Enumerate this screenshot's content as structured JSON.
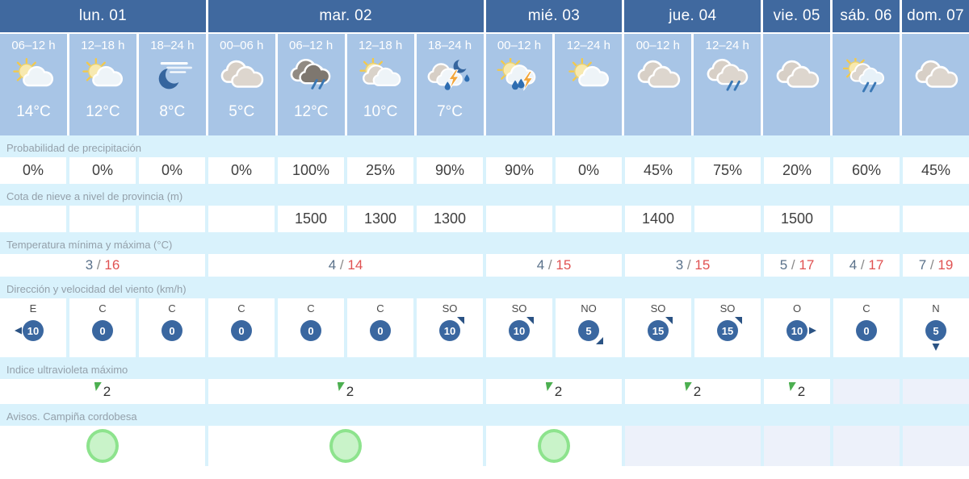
{
  "table": {
    "days": [
      {
        "label": "lun. 01",
        "span": 3
      },
      {
        "label": "mar. 02",
        "span": 4
      },
      {
        "label": "mié. 03",
        "span": 2
      },
      {
        "label": "jue. 04",
        "span": 2
      },
      {
        "label": "vie. 05",
        "span": 1
      },
      {
        "label": "sáb. 06",
        "span": 1
      },
      {
        "label": "dom. 07",
        "span": 1
      }
    ],
    "periods": [
      {
        "time": "06–12 h",
        "icon": "sun-cloud",
        "temp": "14°C"
      },
      {
        "time": "12–18 h",
        "icon": "sun-cloud",
        "temp": "12°C"
      },
      {
        "time": "18–24 h",
        "icon": "moon-wind",
        "temp": "8°C"
      },
      {
        "time": "00–06 h",
        "icon": "clouds",
        "temp": "5°C"
      },
      {
        "time": "06–12 h",
        "icon": "dark-clouds-rain",
        "temp": "12°C"
      },
      {
        "time": "12–18 h",
        "icon": "sun-behind-clouds",
        "temp": "10°C"
      },
      {
        "time": "18–24 h",
        "icon": "night-storm",
        "temp": "7°C"
      },
      {
        "time": "00–12 h",
        "icon": "sun-storm",
        "temp": ""
      },
      {
        "time": "12–24 h",
        "icon": "sun-cloud",
        "temp": ""
      },
      {
        "time": "00–12 h",
        "icon": "clouds",
        "temp": ""
      },
      {
        "time": "12–24 h",
        "icon": "clouds-rain",
        "temp": ""
      },
      {
        "time": "",
        "icon": "clouds",
        "temp": ""
      },
      {
        "time": "",
        "icon": "sun-cloud-rain",
        "temp": ""
      },
      {
        "time": "",
        "icon": "clouds",
        "temp": ""
      }
    ],
    "rows": {
      "precipitation": {
        "label": "Probabilidad de precipitación",
        "values": [
          "0%",
          "0%",
          "0%",
          "0%",
          "100%",
          "25%",
          "90%",
          "90%",
          "0%",
          "45%",
          "75%",
          "20%",
          "60%",
          "45%"
        ]
      },
      "snow_level": {
        "label": "Cota de nieve a nivel de provincia (m)",
        "values": [
          "",
          "",
          "",
          "",
          "1500",
          "1300",
          "1300",
          "",
          "",
          "1400",
          "",
          "1500",
          "",
          ""
        ]
      },
      "temperature": {
        "label": "Temperatura mínima y máxima (°C)",
        "values": [
          {
            "min": "3",
            "max": "16",
            "span": 3
          },
          {
            "min": "4",
            "max": "14",
            "span": 4
          },
          {
            "min": "4",
            "max": "15",
            "span": 2
          },
          {
            "min": "3",
            "max": "15",
            "span": 2
          },
          {
            "min": "5",
            "max": "17",
            "span": 1
          },
          {
            "min": "4",
            "max": "17",
            "span": 1
          },
          {
            "min": "7",
            "max": "19",
            "span": 1
          }
        ]
      },
      "wind": {
        "label": "Dirección y velocidad del viento (km/h)",
        "values": [
          {
            "dir": "E",
            "speed": "10",
            "arrow": "left"
          },
          {
            "dir": "C",
            "speed": "0",
            "arrow": null
          },
          {
            "dir": "C",
            "speed": "0",
            "arrow": null
          },
          {
            "dir": "C",
            "speed": "0",
            "arrow": null
          },
          {
            "dir": "C",
            "speed": "0",
            "arrow": null
          },
          {
            "dir": "C",
            "speed": "0",
            "arrow": null
          },
          {
            "dir": "SO",
            "speed": "10",
            "arrow": "top-right"
          },
          {
            "dir": "SO",
            "speed": "10",
            "arrow": "top-right"
          },
          {
            "dir": "NO",
            "speed": "5",
            "arrow": "bottom-right"
          },
          {
            "dir": "SO",
            "speed": "15",
            "arrow": "top-right"
          },
          {
            "dir": "SO",
            "speed": "15",
            "arrow": "top-right"
          },
          {
            "dir": "O",
            "speed": "10",
            "arrow": "right"
          },
          {
            "dir": "C",
            "speed": "0",
            "arrow": null
          },
          {
            "dir": "N",
            "speed": "5",
            "arrow": "down"
          }
        ]
      },
      "uv": {
        "label": "Indice ultravioleta máximo",
        "values": [
          {
            "value": "2",
            "span": 3
          },
          {
            "value": "2",
            "span": 4
          },
          {
            "value": "2",
            "span": 2
          },
          {
            "value": "2",
            "span": 2
          },
          {
            "value": "2",
            "span": 1
          },
          {
            "value": "",
            "span": 1
          },
          {
            "value": "",
            "span": 1
          }
        ]
      },
      "warnings": {
        "label": "Avisos. Campiña cordobesa",
        "values": [
          {
            "present": true,
            "span": 3
          },
          {
            "present": true,
            "span": 4
          },
          {
            "present": true,
            "span": 2
          },
          {
            "present": false,
            "span": 2
          },
          {
            "present": false,
            "span": 1
          },
          {
            "present": false,
            "span": 1
          },
          {
            "present": false,
            "span": 1
          }
        ]
      }
    },
    "colors": {
      "day_header_bg": "#40699f",
      "subheader_bg": "#a8c5e6",
      "section_bg": "#d9f2fc",
      "cell_bg": "#ffffff",
      "nodata_bg": "#edf1fa",
      "min_temp": "#5a718a",
      "max_temp": "#e05252",
      "wind_badge": "#3a67a0",
      "uv_flag_green": "#4caf50",
      "warning_fill": "#c9f3c9",
      "warning_border": "#8de38d"
    }
  }
}
